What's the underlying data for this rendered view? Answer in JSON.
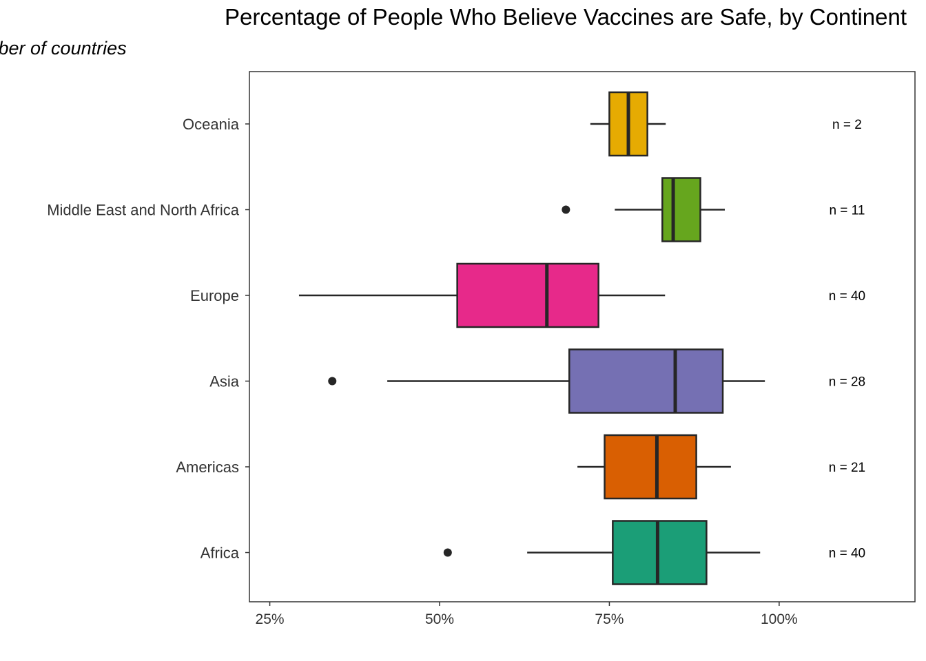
{
  "chart_data": {
    "type": "boxplot",
    "title": "Percentage of People Who Believe Vaccines are Safe, by Continent",
    "subtitle": "umber of countries",
    "xlabel": "",
    "ylabel": "",
    "xlim": [
      22,
      120
    ],
    "x_ticks": [
      25,
      50,
      75,
      100
    ],
    "x_tick_labels": [
      "25%",
      "50%",
      "75%",
      "100%"
    ],
    "grid": false,
    "legend": "none",
    "categories": [
      "Oceania",
      "Middle East and North Africa",
      "Europe",
      "Asia",
      "Americas",
      "Africa"
    ],
    "boxes": [
      {
        "category": "Oceania",
        "color": "#E6AB02",
        "whisker_low": 72.2,
        "q1": 75.0,
        "median": 77.8,
        "q3": 80.6,
        "whisker_high": 83.3,
        "outliers": [],
        "n_label": "n = 2"
      },
      {
        "category": "Middle East and North Africa",
        "color": "#66A61E",
        "whisker_low": 75.8,
        "q1": 82.8,
        "median": 84.4,
        "q3": 88.4,
        "whisker_high": 92.0,
        "outliers": [
          68.6
        ],
        "n_label": "n = 11"
      },
      {
        "category": "Europe",
        "color": "#E7298A",
        "whisker_low": 29.3,
        "q1": 52.6,
        "median": 65.8,
        "q3": 73.4,
        "whisker_high": 83.2,
        "outliers": [],
        "n_label": "n = 40"
      },
      {
        "category": "Asia",
        "color": "#7570B3",
        "whisker_low": 42.3,
        "q1": 69.1,
        "median": 84.7,
        "q3": 91.7,
        "whisker_high": 97.9,
        "outliers": [
          34.2
        ],
        "n_label": "n = 28"
      },
      {
        "category": "Americas",
        "color": "#D95F02",
        "whisker_low": 70.3,
        "q1": 74.3,
        "median": 82.0,
        "q3": 87.8,
        "whisker_high": 92.9,
        "outliers": [],
        "n_label": "n = 21"
      },
      {
        "category": "Africa",
        "color": "#1B9E77",
        "whisker_low": 62.9,
        "q1": 75.5,
        "median": 82.1,
        "q3": 89.3,
        "whisker_high": 97.2,
        "outliers": [
          51.2
        ],
        "n_label": "n = 40"
      }
    ],
    "n_label_x": 110
  }
}
